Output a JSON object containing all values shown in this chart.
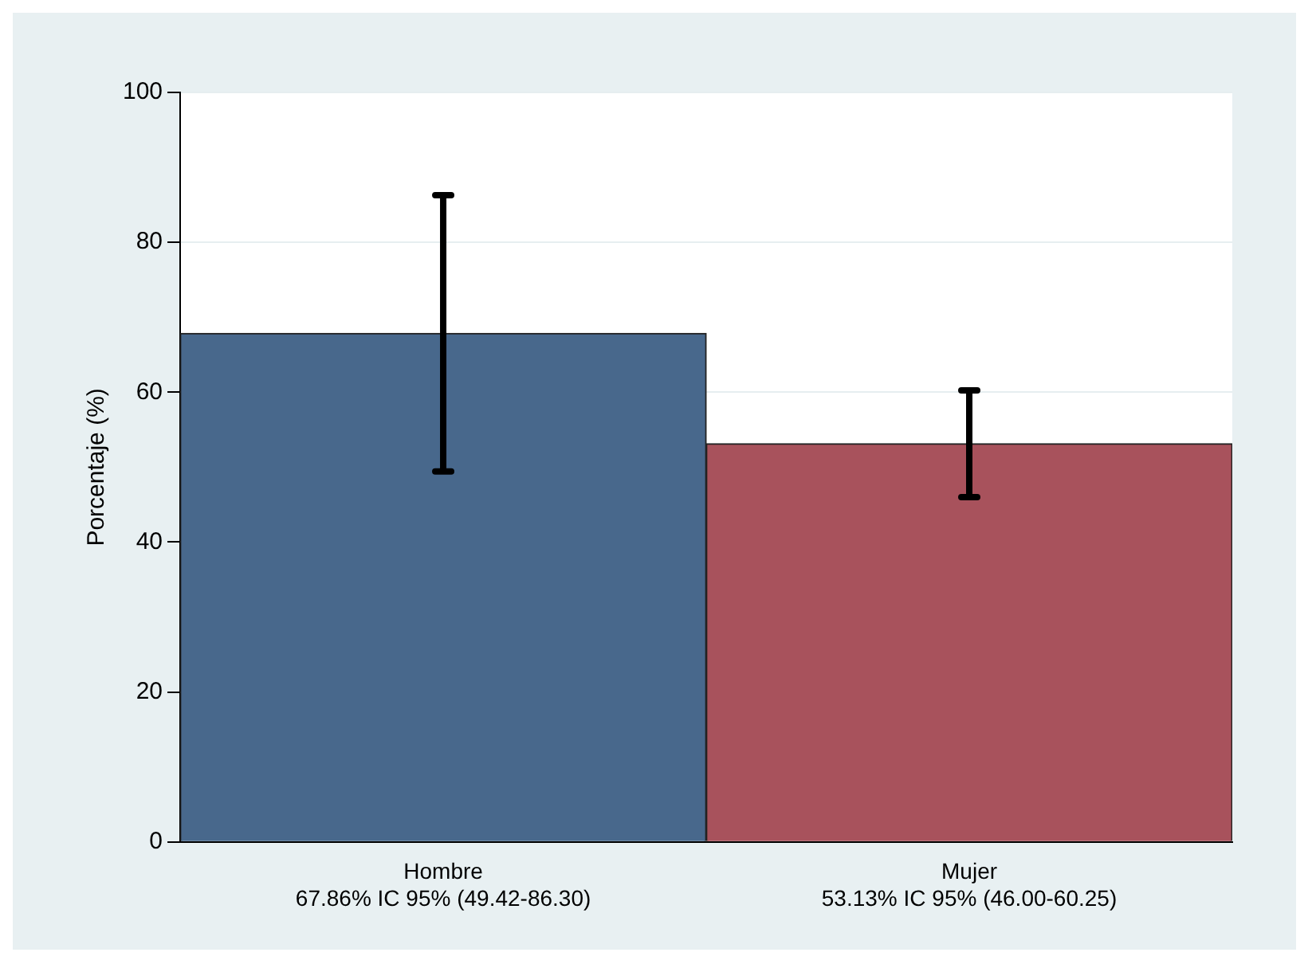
{
  "chart_data": {
    "type": "bar",
    "categories": [
      "Hombre",
      "Mujer"
    ],
    "values": [
      67.86,
      53.13
    ],
    "colors": [
      "#48688c",
      "#a8525c"
    ],
    "errors": [
      [
        49.42,
        86.3
      ],
      [
        46.0,
        60.25
      ]
    ],
    "value_labels": [
      "67.86% IC 95% (49.42-86.30)",
      "53.13% IC 95% (46.00-60.25)"
    ],
    "ylabel": "Porcentaje (%)",
    "ylim": [
      0,
      100
    ],
    "yticks": [
      0,
      20,
      40,
      60,
      80,
      100
    ],
    "grid": "y",
    "legend": false
  }
}
